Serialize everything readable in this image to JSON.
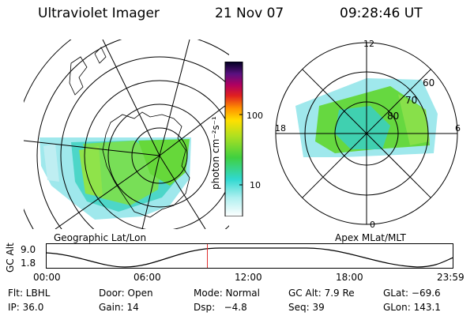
{
  "header": {
    "title": "Ultraviolet Imager",
    "date": "21 Nov 07",
    "time": "09:28:46 UT"
  },
  "colorbar": {
    "unit_label": "photon cm⁻²s⁻¹",
    "ticks": [
      "100",
      "10"
    ]
  },
  "geo_panel": {
    "label": "Geographic Lat/Lon"
  },
  "apex_panel": {
    "label": "Apex MLat/MLT",
    "mlt_labels": [
      "12",
      "18",
      "6",
      "0"
    ],
    "mlat_labels": [
      "60",
      "70",
      "80"
    ]
  },
  "timeline": {
    "ylabel": "GC Alt",
    "ymax": "9.0",
    "ymin": "1.8",
    "xticks": [
      "00:00",
      "06:00",
      "12:00",
      "18:00",
      "23:59"
    ],
    "current_time_fraction": 0.395
  },
  "status": {
    "filter": "Flt: LBHL",
    "door": "Door: Open",
    "mode": "Mode: Normal",
    "gc_alt": "GC Alt: 7.9 Re",
    "glat": "GLat: −69.6",
    "ip": "IP: 36.0",
    "gain": "Gain: 14",
    "dsp": "Dsp:   −4.8",
    "seq": "Seq: 39",
    "glon": "GLon: 143.1"
  },
  "colors": {
    "accent_marker": "#e03030",
    "line": "#000000"
  }
}
